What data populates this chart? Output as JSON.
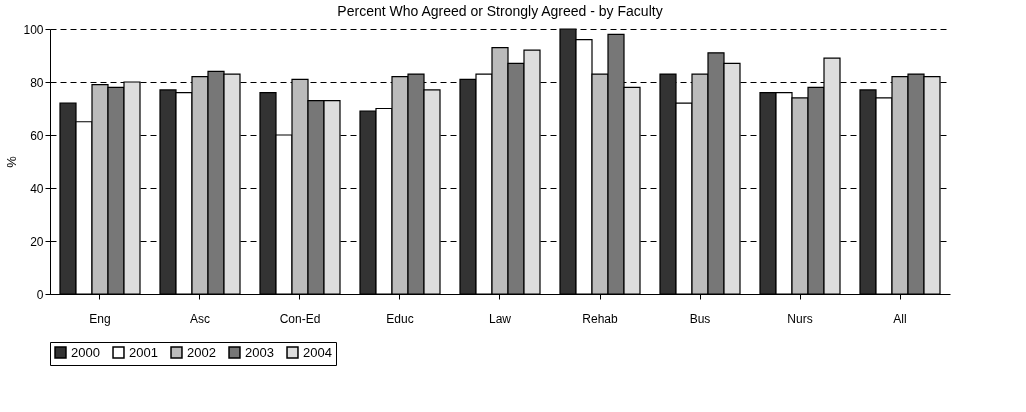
{
  "chart_data": {
    "type": "bar",
    "title": "Percent Who Agreed or Strongly Agreed - by Faculty",
    "ylabel": "%",
    "categories": [
      "Eng",
      "Asc",
      "Con-Ed",
      "Educ",
      "Law",
      "Rehab",
      "Bus",
      "Nurs",
      "All"
    ],
    "series": [
      {
        "name": "2000",
        "color": "#333333",
        "values": [
          72,
          77,
          76,
          69,
          81,
          100,
          83,
          76,
          77
        ]
      },
      {
        "name": "2001",
        "color": "#ffffff",
        "values": [
          65,
          76,
          60,
          70,
          83,
          96,
          72,
          76,
          74
        ]
      },
      {
        "name": "2002",
        "color": "#bbbbbb",
        "values": [
          79,
          82,
          81,
          82,
          93,
          83,
          83,
          74,
          82
        ]
      },
      {
        "name": "2003",
        "color": "#777777",
        "values": [
          78,
          84,
          73,
          83,
          87,
          98,
          91,
          78,
          83
        ]
      },
      {
        "name": "2004",
        "color": "#dddddd",
        "values": [
          80,
          83,
          73,
          77,
          92,
          78,
          87,
          89,
          82
        ]
      }
    ],
    "ylim": [
      0,
      100
    ],
    "yticks": [
      0,
      20,
      40,
      60,
      80,
      100
    ],
    "grid": "y",
    "legend": "bottom"
  }
}
